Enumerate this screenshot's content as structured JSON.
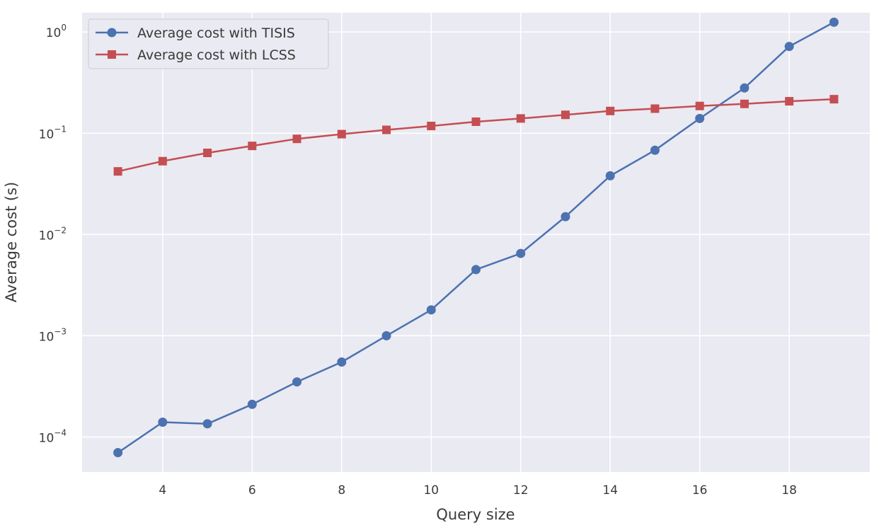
{
  "chart_data": {
    "type": "line",
    "title": "",
    "xlabel": "Query size",
    "ylabel": "Average cost (s)",
    "xscale": "linear",
    "yscale": "log",
    "xlim": [
      2.2,
      19.8
    ],
    "ylim": [
      4.5e-05,
      1.55
    ],
    "xticks": [
      4,
      6,
      8,
      10,
      12,
      14,
      16,
      18
    ],
    "xtick_labels": [
      "4",
      "6",
      "8",
      "10",
      "12",
      "14",
      "16",
      "18"
    ],
    "yticks": [
      {
        "value": 1,
        "base": "10",
        "exp": "0"
      },
      {
        "value": 0.1,
        "base": "10",
        "exp": "−1"
      },
      {
        "value": 0.01,
        "base": "10",
        "exp": "−2"
      },
      {
        "value": 0.001,
        "base": "10",
        "exp": "−3"
      },
      {
        "value": 0.0001,
        "base": "10",
        "exp": "−4"
      }
    ],
    "grid": true,
    "legend_position": "top-left",
    "x": [
      3,
      4,
      5,
      6,
      7,
      8,
      9,
      10,
      11,
      12,
      13,
      14,
      15,
      16,
      17,
      18,
      19
    ],
    "series": [
      {
        "name": "Average cost with TISIS",
        "color": "#4c72b0",
        "marker": "circle",
        "values": [
          7e-05,
          0.00014,
          0.000135,
          0.00021,
          0.00035,
          0.00055,
          0.001,
          0.0018,
          0.0045,
          0.0065,
          0.015,
          0.038,
          0.068,
          0.14,
          0.28,
          0.72,
          1.25
        ]
      },
      {
        "name": "Average cost with LCSS",
        "color": "#c44e52",
        "marker": "square",
        "values": [
          0.042,
          0.053,
          0.064,
          0.075,
          0.088,
          0.098,
          0.108,
          0.118,
          0.13,
          0.14,
          0.152,
          0.166,
          0.175,
          0.186,
          0.195,
          0.207,
          0.217
        ]
      }
    ]
  }
}
